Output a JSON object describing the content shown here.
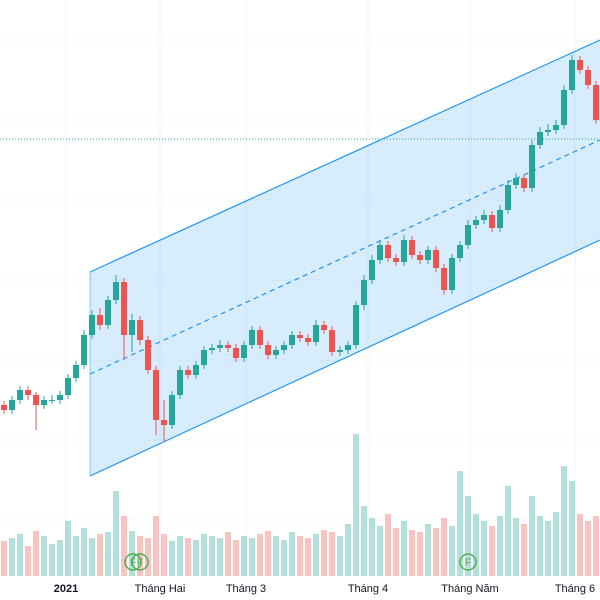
{
  "chart_data": {
    "type": "candlestick",
    "x_labels": [
      "2021",
      "Tháng Hai",
      "Tháng 3",
      "Tháng 4",
      "Tháng Năm",
      "Tháng 6"
    ],
    "open": [
      195,
      190,
      200,
      210,
      205,
      195,
      200,
      200,
      205,
      222,
      235,
      265,
      285,
      275,
      300,
      318,
      265,
      280,
      260,
      230,
      180,
      175,
      205,
      230,
      225,
      235,
      250,
      252,
      255,
      252,
      242,
      255,
      270,
      255,
      245,
      250,
      255,
      265,
      262,
      258,
      275,
      270,
      248,
      250,
      255,
      295,
      320,
      340,
      355,
      342,
      338,
      360,
      345,
      340,
      350,
      332,
      310,
      342,
      355,
      375,
      380,
      385,
      372,
      390,
      415,
      422,
      412,
      455,
      468,
      470,
      475,
      510,
      540,
      530,
      515
    ],
    "high": [
      199,
      204,
      214,
      214,
      208,
      204,
      205,
      209,
      226,
      239,
      270,
      290,
      292,
      304,
      325,
      322,
      286,
      284,
      264,
      234,
      200,
      209,
      234,
      234,
      239,
      254,
      256,
      260,
      259,
      256,
      259,
      274,
      274,
      259,
      254,
      259,
      269,
      269,
      266,
      280,
      279,
      274,
      254,
      259,
      299,
      325,
      345,
      360,
      359,
      346,
      365,
      364,
      349,
      354,
      354,
      336,
      346,
      359,
      380,
      384,
      390,
      389,
      395,
      420,
      427,
      426,
      460,
      473,
      476,
      480,
      515,
      545,
      544,
      534,
      519
    ],
    "low": [
      186,
      186,
      196,
      200,
      170,
      191,
      196,
      196,
      201,
      218,
      231,
      261,
      270,
      271,
      296,
      240,
      248,
      255,
      226,
      165,
      158,
      171,
      201,
      221,
      221,
      231,
      246,
      248,
      248,
      238,
      238,
      251,
      251,
      241,
      241,
      246,
      251,
      258,
      254,
      254,
      266,
      244,
      244,
      246,
      251,
      290,
      316,
      336,
      338,
      334,
      334,
      341,
      336,
      336,
      328,
      305,
      306,
      338,
      351,
      371,
      376,
      368,
      368,
      386,
      411,
      408,
      408,
      451,
      464,
      466,
      471,
      506,
      526,
      511,
      476
    ],
    "close": [
      190,
      200,
      210,
      205,
      195,
      200,
      200,
      205,
      222,
      235,
      265,
      285,
      275,
      300,
      318,
      265,
      280,
      260,
      230,
      180,
      175,
      205,
      230,
      225,
      235,
      250,
      252,
      255,
      252,
      242,
      255,
      270,
      255,
      245,
      250,
      255,
      265,
      262,
      258,
      275,
      270,
      248,
      250,
      255,
      295,
      320,
      340,
      355,
      342,
      338,
      360,
      345,
      340,
      350,
      332,
      310,
      342,
      355,
      375,
      380,
      385,
      372,
      390,
      415,
      422,
      412,
      455,
      468,
      470,
      475,
      510,
      540,
      530,
      515,
      480
    ],
    "volume": [
      35,
      38,
      42,
      30,
      45,
      40,
      32,
      36,
      55,
      40,
      48,
      38,
      42,
      44,
      85,
      60,
      45,
      40,
      38,
      60,
      42,
      35,
      40,
      38,
      36,
      42,
      40,
      38,
      44,
      36,
      40,
      38,
      42,
      45,
      40,
      36,
      44,
      40,
      38,
      42,
      46,
      44,
      40,
      52,
      142,
      70,
      58,
      50,
      62,
      48,
      55,
      46,
      44,
      52,
      48,
      58,
      50,
      105,
      80,
      62,
      55,
      50,
      60,
      90,
      58,
      52,
      80,
      60,
      55,
      64,
      110,
      95,
      62,
      55,
      60
    ],
    "ylim": [
      0,
      600
    ],
    "y2lim": [
      0,
      600
    ],
    "markers": [
      "F",
      "F",
      "F"
    ],
    "up_color": "#26a69a",
    "down_color": "#ef5350",
    "channel_color": "#2196f3"
  }
}
